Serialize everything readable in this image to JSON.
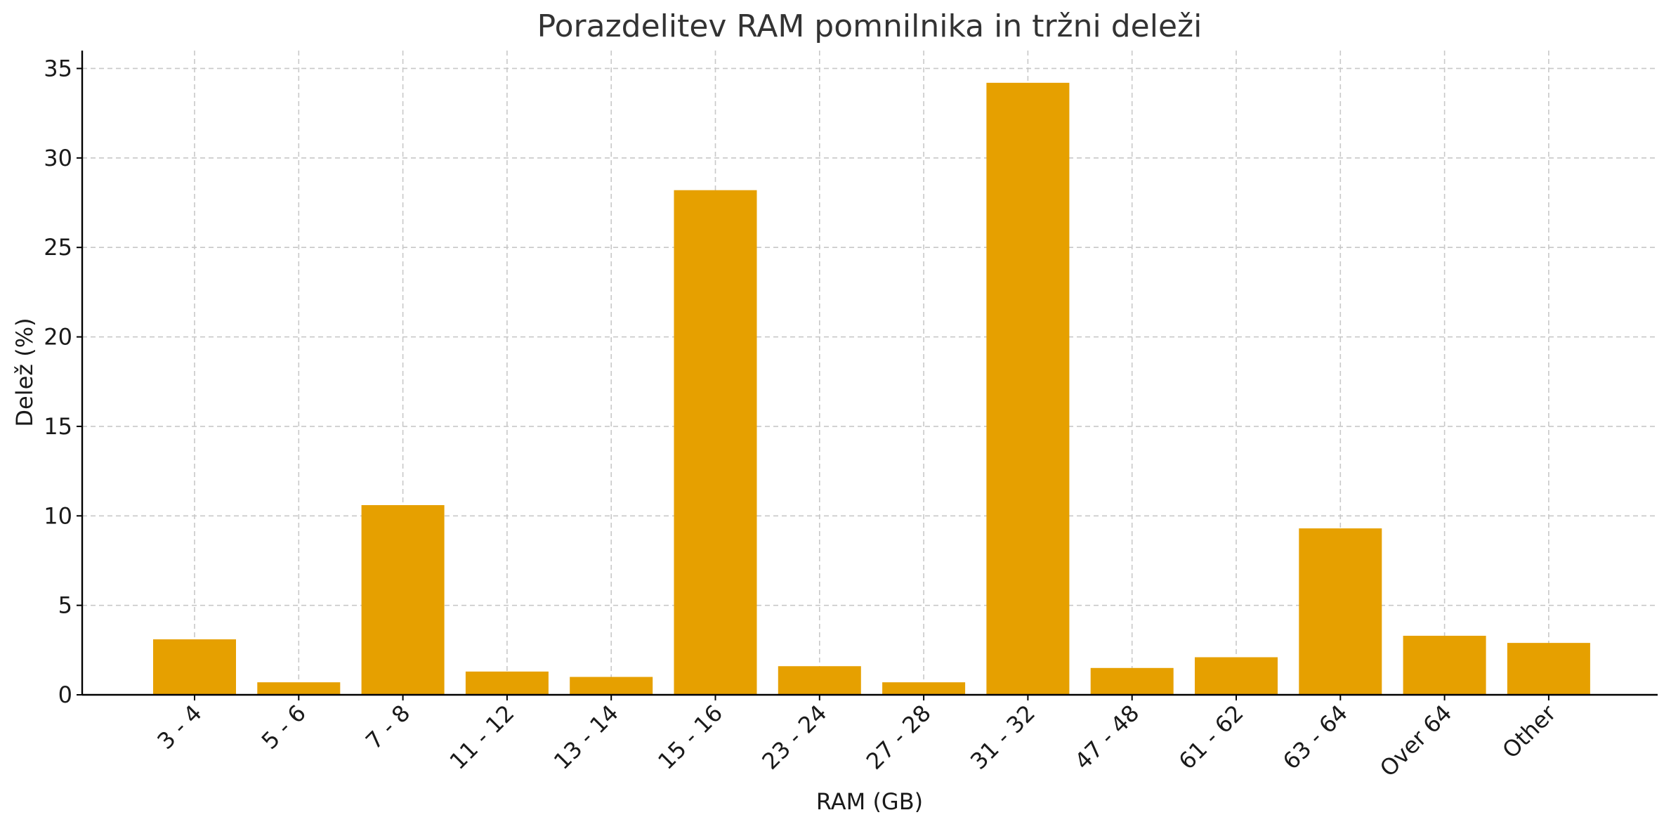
{
  "chart_data": {
    "type": "bar",
    "title": "Porazdelitev RAM pomnilnika in tržni deleži",
    "xlabel": "RAM (GB)",
    "ylabel": "Delež (%)",
    "categories": [
      "3 - 4",
      "5 - 6",
      "7 - 8",
      "11 - 12",
      "13 - 14",
      "15 - 16",
      "23 - 24",
      "27 - 28",
      "31 - 32",
      "47 - 48",
      "61 - 62",
      "63 - 64",
      "Over 64",
      "Other"
    ],
    "values": [
      3.1,
      0.7,
      10.6,
      1.3,
      1.0,
      28.2,
      1.6,
      0.7,
      34.2,
      1.5,
      2.1,
      9.3,
      3.3,
      2.9
    ],
    "ylim": [
      0,
      36
    ],
    "yticks": [
      0,
      5,
      10,
      15,
      20,
      25,
      30,
      35
    ],
    "grid": true,
    "bar_color": "#e6a000",
    "x_tick_rotation": -45
  }
}
